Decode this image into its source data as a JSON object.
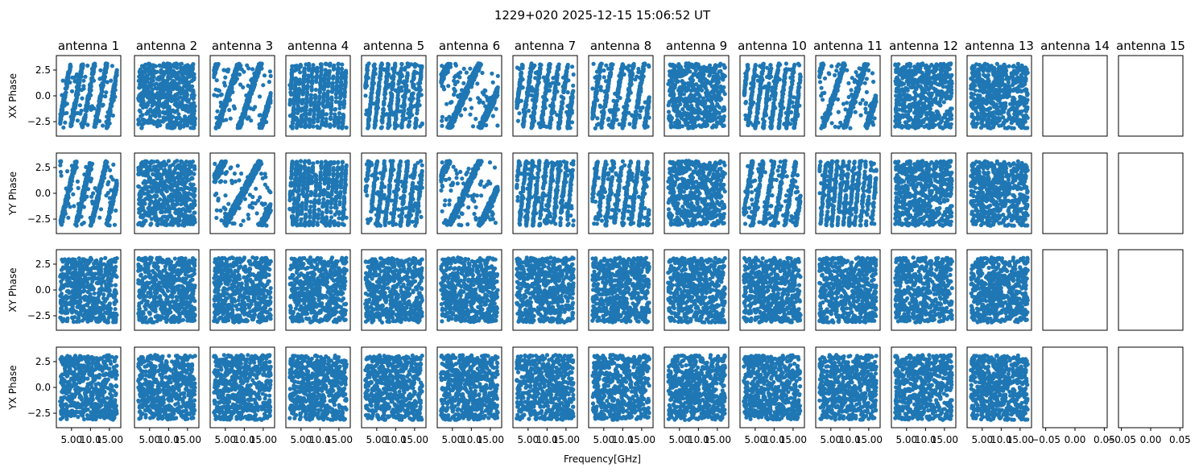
{
  "figure": {
    "suptitle": "1229+020 2025-12-15 15:06:52 UT",
    "xlabel": "Frequency[GHz]"
  },
  "colors": {
    "points": "#1f77b4",
    "axes": "#000000",
    "background": "#ffffff"
  },
  "chart_data": {
    "type": "scatter",
    "grid": false,
    "antennas": [
      "antenna 1",
      "antenna 2",
      "antenna 3",
      "antenna 4",
      "antenna 5",
      "antenna 6",
      "antenna 7",
      "antenna 8",
      "antenna 9",
      "antenna 10",
      "antenna 11",
      "antenna 12",
      "antenna 13",
      "antenna 14",
      "antenna 15"
    ],
    "rows": [
      {
        "ylabel": "XX Phase",
        "pattern": "diagonal stripes on several antennas"
      },
      {
        "ylabel": "YY Phase",
        "pattern": "diagonal stripes on several antennas"
      },
      {
        "ylabel": "XY Phase",
        "pattern": "uniform scatter"
      },
      {
        "ylabel": "YX Phase",
        "pattern": "uniform scatter"
      }
    ],
    "data_antennas": 13,
    "empty_antennas": [
      "antenna 14",
      "antenna 15"
    ],
    "xlim": [
      1,
      18
    ],
    "ylim": [
      -3.9,
      3.9
    ],
    "phase_range": [
      -3.14159,
      3.14159
    ],
    "points_per_panel": 600,
    "yticks": [
      -2.5,
      0.0,
      2.5
    ],
    "yticklabels": [
      "−2.5",
      "0.0",
      "2.5"
    ],
    "xticks": [
      5.0,
      10.0,
      15.0
    ],
    "xticklabels": [
      "5.00",
      "10.0",
      "15.00"
    ],
    "empty_xlim": [
      -0.055,
      0.055
    ],
    "empty_xticks": [
      -0.05,
      0.0,
      0.05
    ],
    "empty_xticklabels": [
      "−0.05",
      "0.00",
      "0.05"
    ]
  }
}
